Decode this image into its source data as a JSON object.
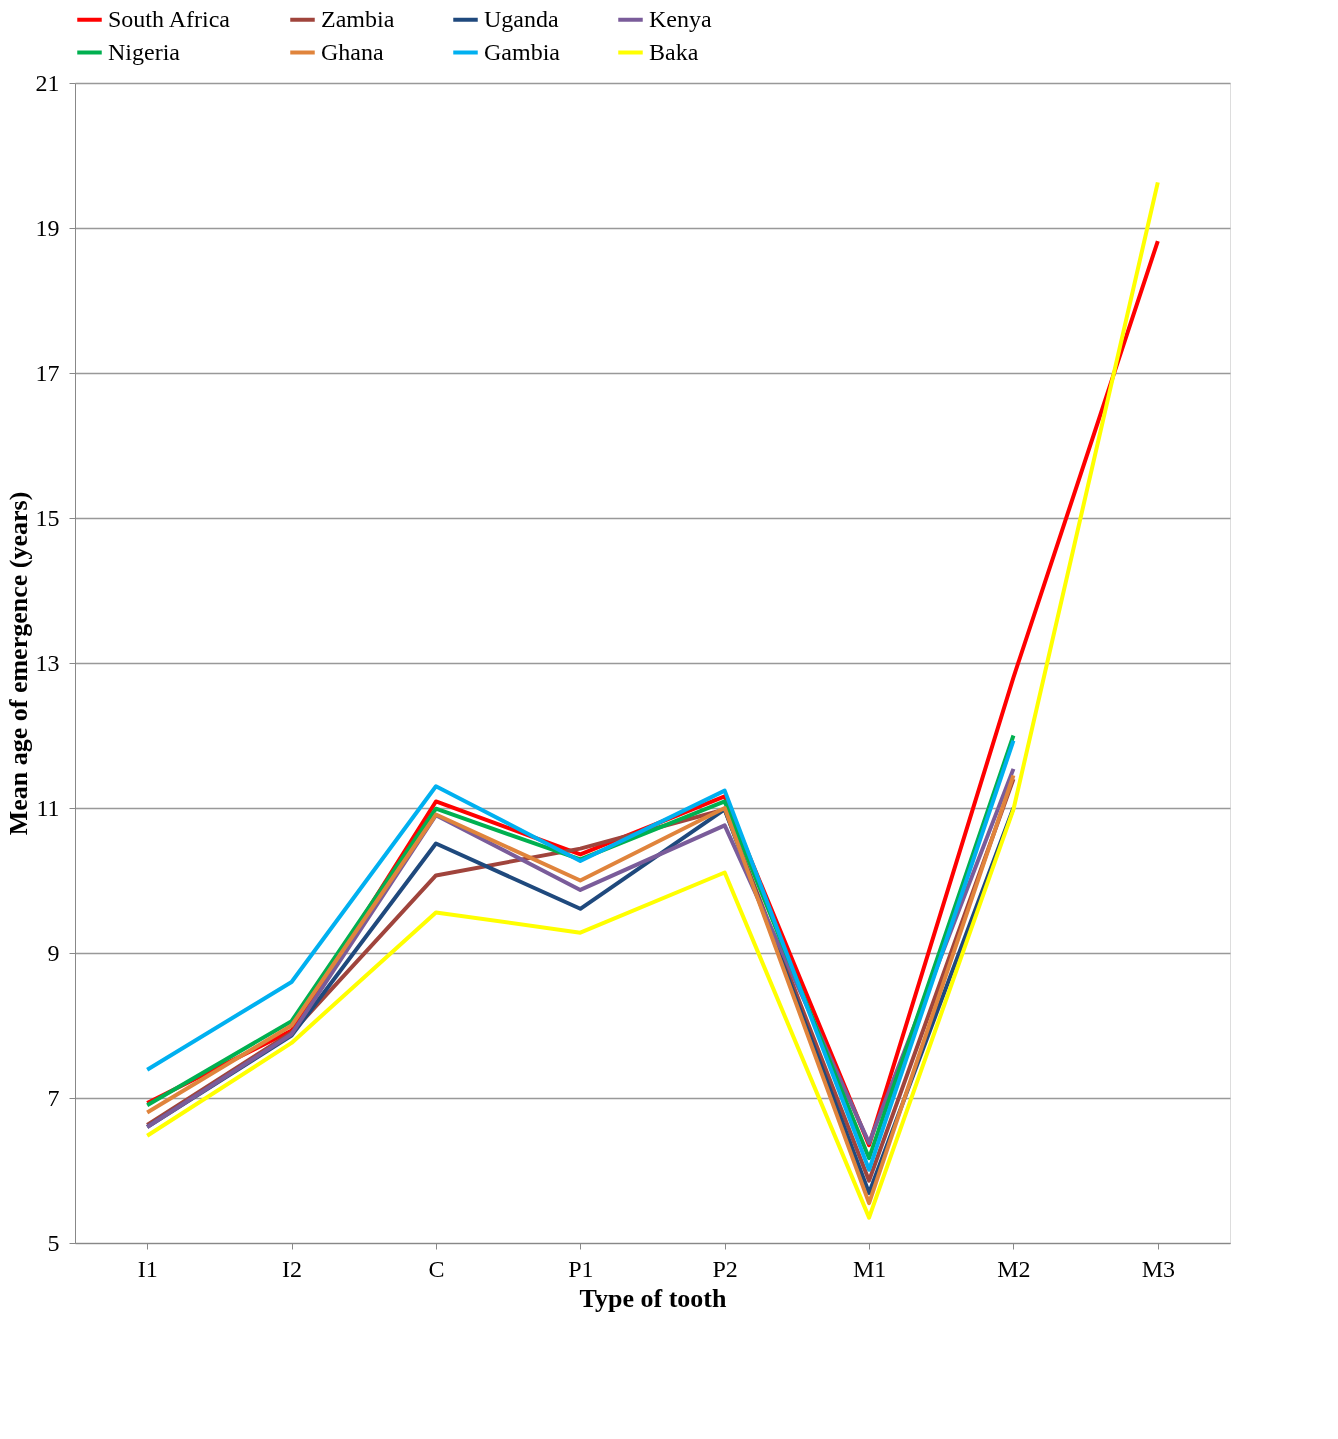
{
  "chart_data": {
    "type": "line",
    "xlabel": "Type of tooth",
    "ylabel": "Mean age of emergence (years)",
    "categories": [
      "I1",
      "I2",
      "C",
      "P1",
      "P2",
      "M1",
      "M2",
      "M3"
    ],
    "ylim": [
      5,
      21
    ],
    "yticks": [
      5,
      7,
      9,
      11,
      13,
      15,
      17,
      19,
      21
    ],
    "grid": "y",
    "legend": "top",
    "marker": "none",
    "line_style": "solid",
    "series": [
      {
        "name": "South Africa",
        "color": "#ff0000",
        "values": [
          6.93,
          7.93,
          11.09,
          10.36,
          11.16,
          6.35,
          12.8,
          18.82
        ]
      },
      {
        "name": "Zambia",
        "color": "#a0443c",
        "values": [
          6.63,
          7.9,
          10.07,
          10.44,
          10.98,
          5.86,
          11.4,
          null
        ]
      },
      {
        "name": "Uganda",
        "color": "#1f497d",
        "values": [
          6.6,
          7.86,
          10.51,
          9.61,
          10.98,
          5.69,
          11.0,
          null
        ]
      },
      {
        "name": "Kenya",
        "color": "#7a5c9a",
        "values": [
          6.6,
          7.88,
          10.9,
          9.87,
          10.76,
          6.38,
          11.54,
          null
        ]
      },
      {
        "name": "Nigeria",
        "color": "#00b050",
        "values": [
          6.9,
          8.06,
          10.99,
          10.29,
          11.09,
          6.17,
          12.0,
          null
        ]
      },
      {
        "name": "Ghana",
        "color": "#e0843c",
        "values": [
          6.8,
          8.0,
          10.91,
          10.0,
          11.0,
          5.55,
          11.45,
          null
        ]
      },
      {
        "name": "Gambia",
        "color": "#00b0f0",
        "values": [
          7.39,
          8.6,
          11.3,
          10.27,
          11.24,
          6.01,
          11.93,
          null
        ]
      },
      {
        "name": "Baka",
        "color": "#ffff00",
        "values": [
          6.48,
          7.76,
          9.56,
          9.28,
          10.11,
          5.35,
          10.98,
          19.63
        ]
      }
    ]
  }
}
